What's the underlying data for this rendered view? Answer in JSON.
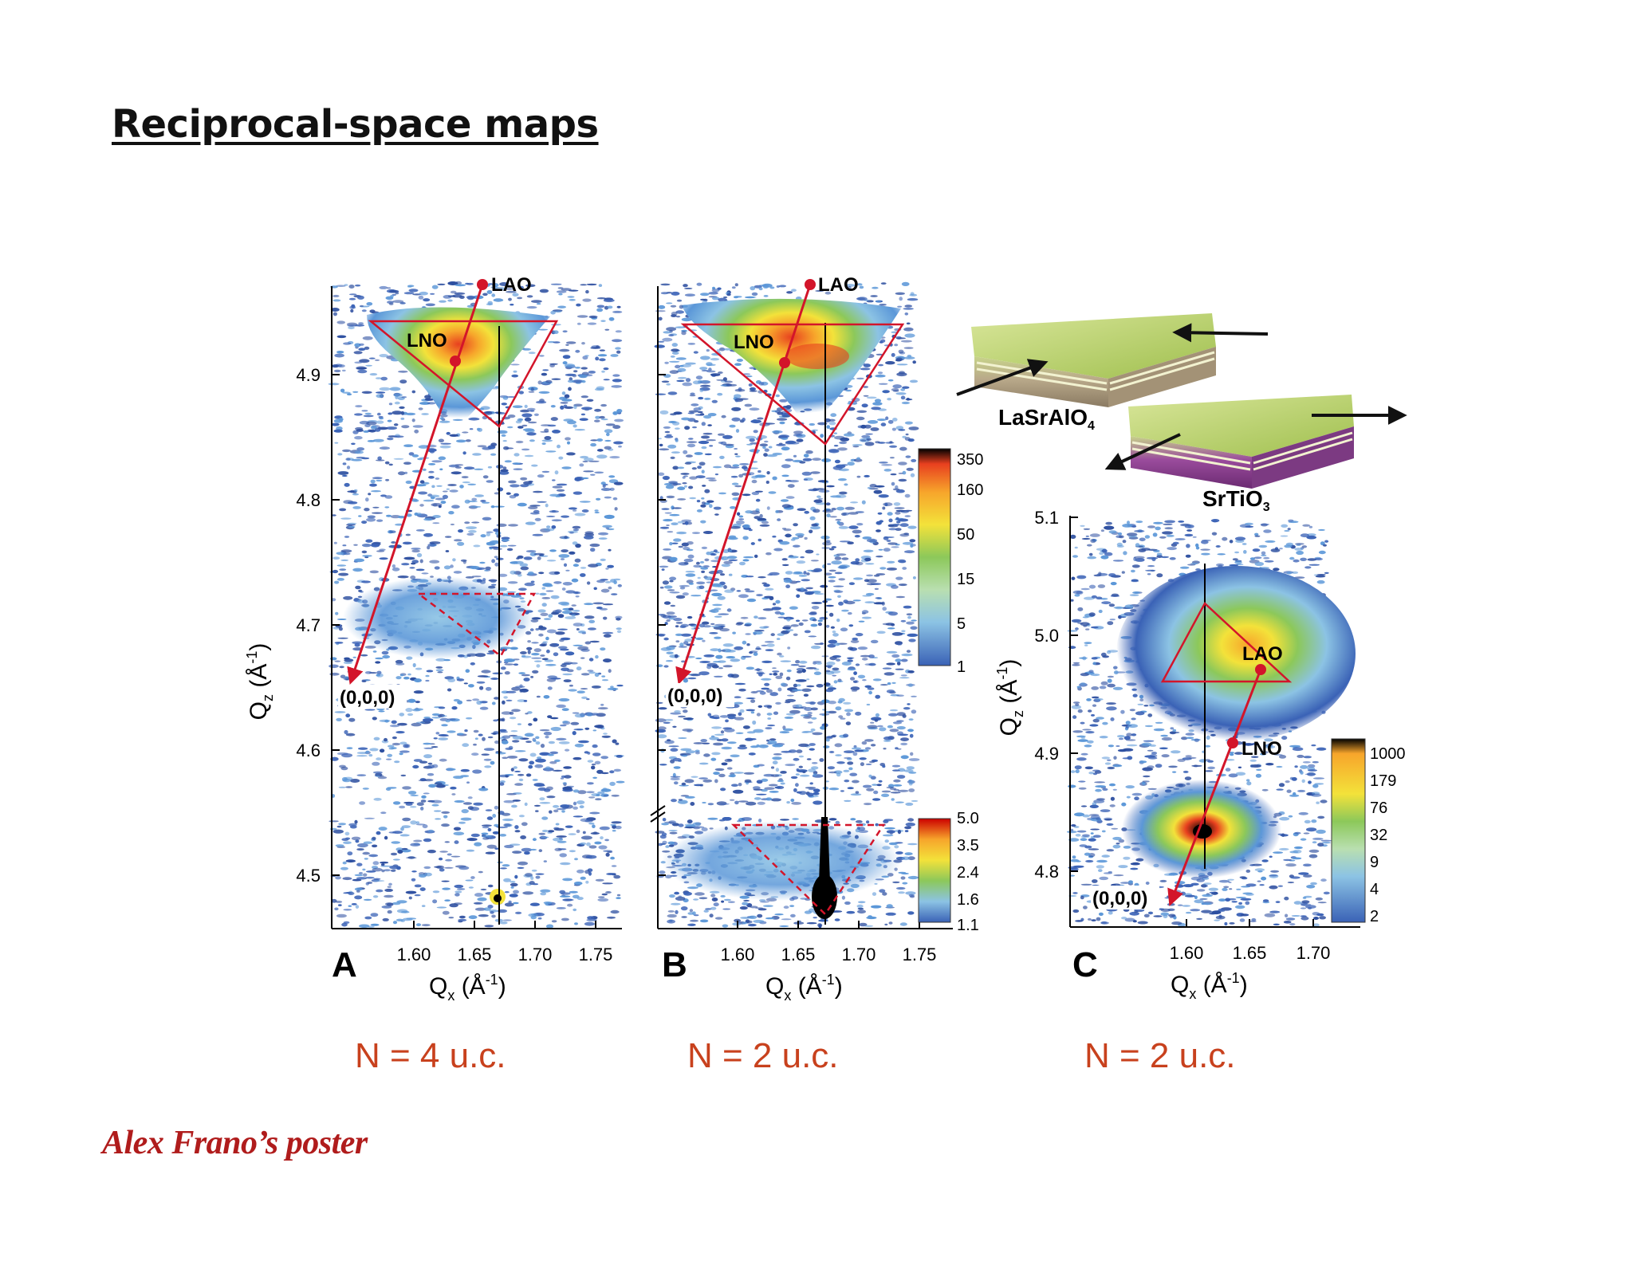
{
  "slide": {
    "title": "Reciprocal-space maps",
    "credit": "Alex Frano’s poster",
    "captions": [
      "N = 4 u.c.",
      "N = 2 u.c.",
      "N = 2 u.c."
    ]
  },
  "colors": {
    "caption": "#c8411d",
    "credit": "#b01c1c",
    "arrow": "#d3152a",
    "colormap": [
      "#3a62b6",
      "#5b97d8",
      "#8cc3e4",
      "#b9dfb0",
      "#8cc85a",
      "#c4dd40",
      "#f3e23a",
      "#f7a52b",
      "#e8401f",
      "#000000"
    ]
  },
  "figure": {
    "panels": [
      {
        "letter": "A",
        "xlabel": "Q",
        "xlabel_sub": "x",
        "xlabel_unit": "(Å",
        "xlabel_exp": "-1",
        "xlabel_close": ")",
        "ylabel": "Q",
        "ylabel_sub": "z",
        "ylabel_unit": "(Å",
        "ylabel_exp": "-1",
        "ylabel_close": ")",
        "xticks": [
          "1.60",
          "1.65",
          "1.70",
          "1.75"
        ],
        "yticks": [
          "4.9",
          "4.8",
          "4.7",
          "4.6",
          "4.5"
        ],
        "labels": {
          "lao": "LAO",
          "lno": "LNO",
          "origin": "(0,0,0)"
        }
      },
      {
        "letter": "B",
        "xlabel": "Q",
        "xlabel_sub": "x",
        "xlabel_unit": "(Å",
        "xlabel_exp": "-1",
        "xlabel_close": ")",
        "xticks": [
          "1.60",
          "1.65",
          "1.70",
          "1.75"
        ],
        "labels": {
          "lao": "LAO",
          "lno": "LNO",
          "origin": "(0,0,0)"
        },
        "colorbar_upper": [
          "350",
          "160",
          "50",
          "15",
          "5",
          "1"
        ],
        "colorbar_lower": [
          "5.0",
          "3.5",
          "2.4",
          "1.6",
          "1.1"
        ]
      },
      {
        "letter": "C",
        "xlabel": "Q",
        "xlabel_sub": "x",
        "xlabel_unit": "(Å",
        "xlabel_exp": "-1",
        "xlabel_close": ")",
        "ylabel": "Q",
        "ylabel_sub": "z",
        "ylabel_unit": "(Å",
        "ylabel_exp": "-1",
        "ylabel_close": ")",
        "xticks": [
          "1.60",
          "1.65",
          "1.70"
        ],
        "yticks": [
          "5.1",
          "5.0",
          "4.9",
          "4.8"
        ],
        "labels": {
          "lao": "LAO",
          "lno": "LNO",
          "origin": "(0,0,0)"
        },
        "colorbar": [
          "1000",
          "179",
          "76",
          "32",
          "9",
          "4",
          "2"
        ]
      }
    ],
    "substrates": [
      {
        "name": "LaSrAlO",
        "sub": "4"
      },
      {
        "name": "SrTiO",
        "sub": "3"
      }
    ]
  }
}
